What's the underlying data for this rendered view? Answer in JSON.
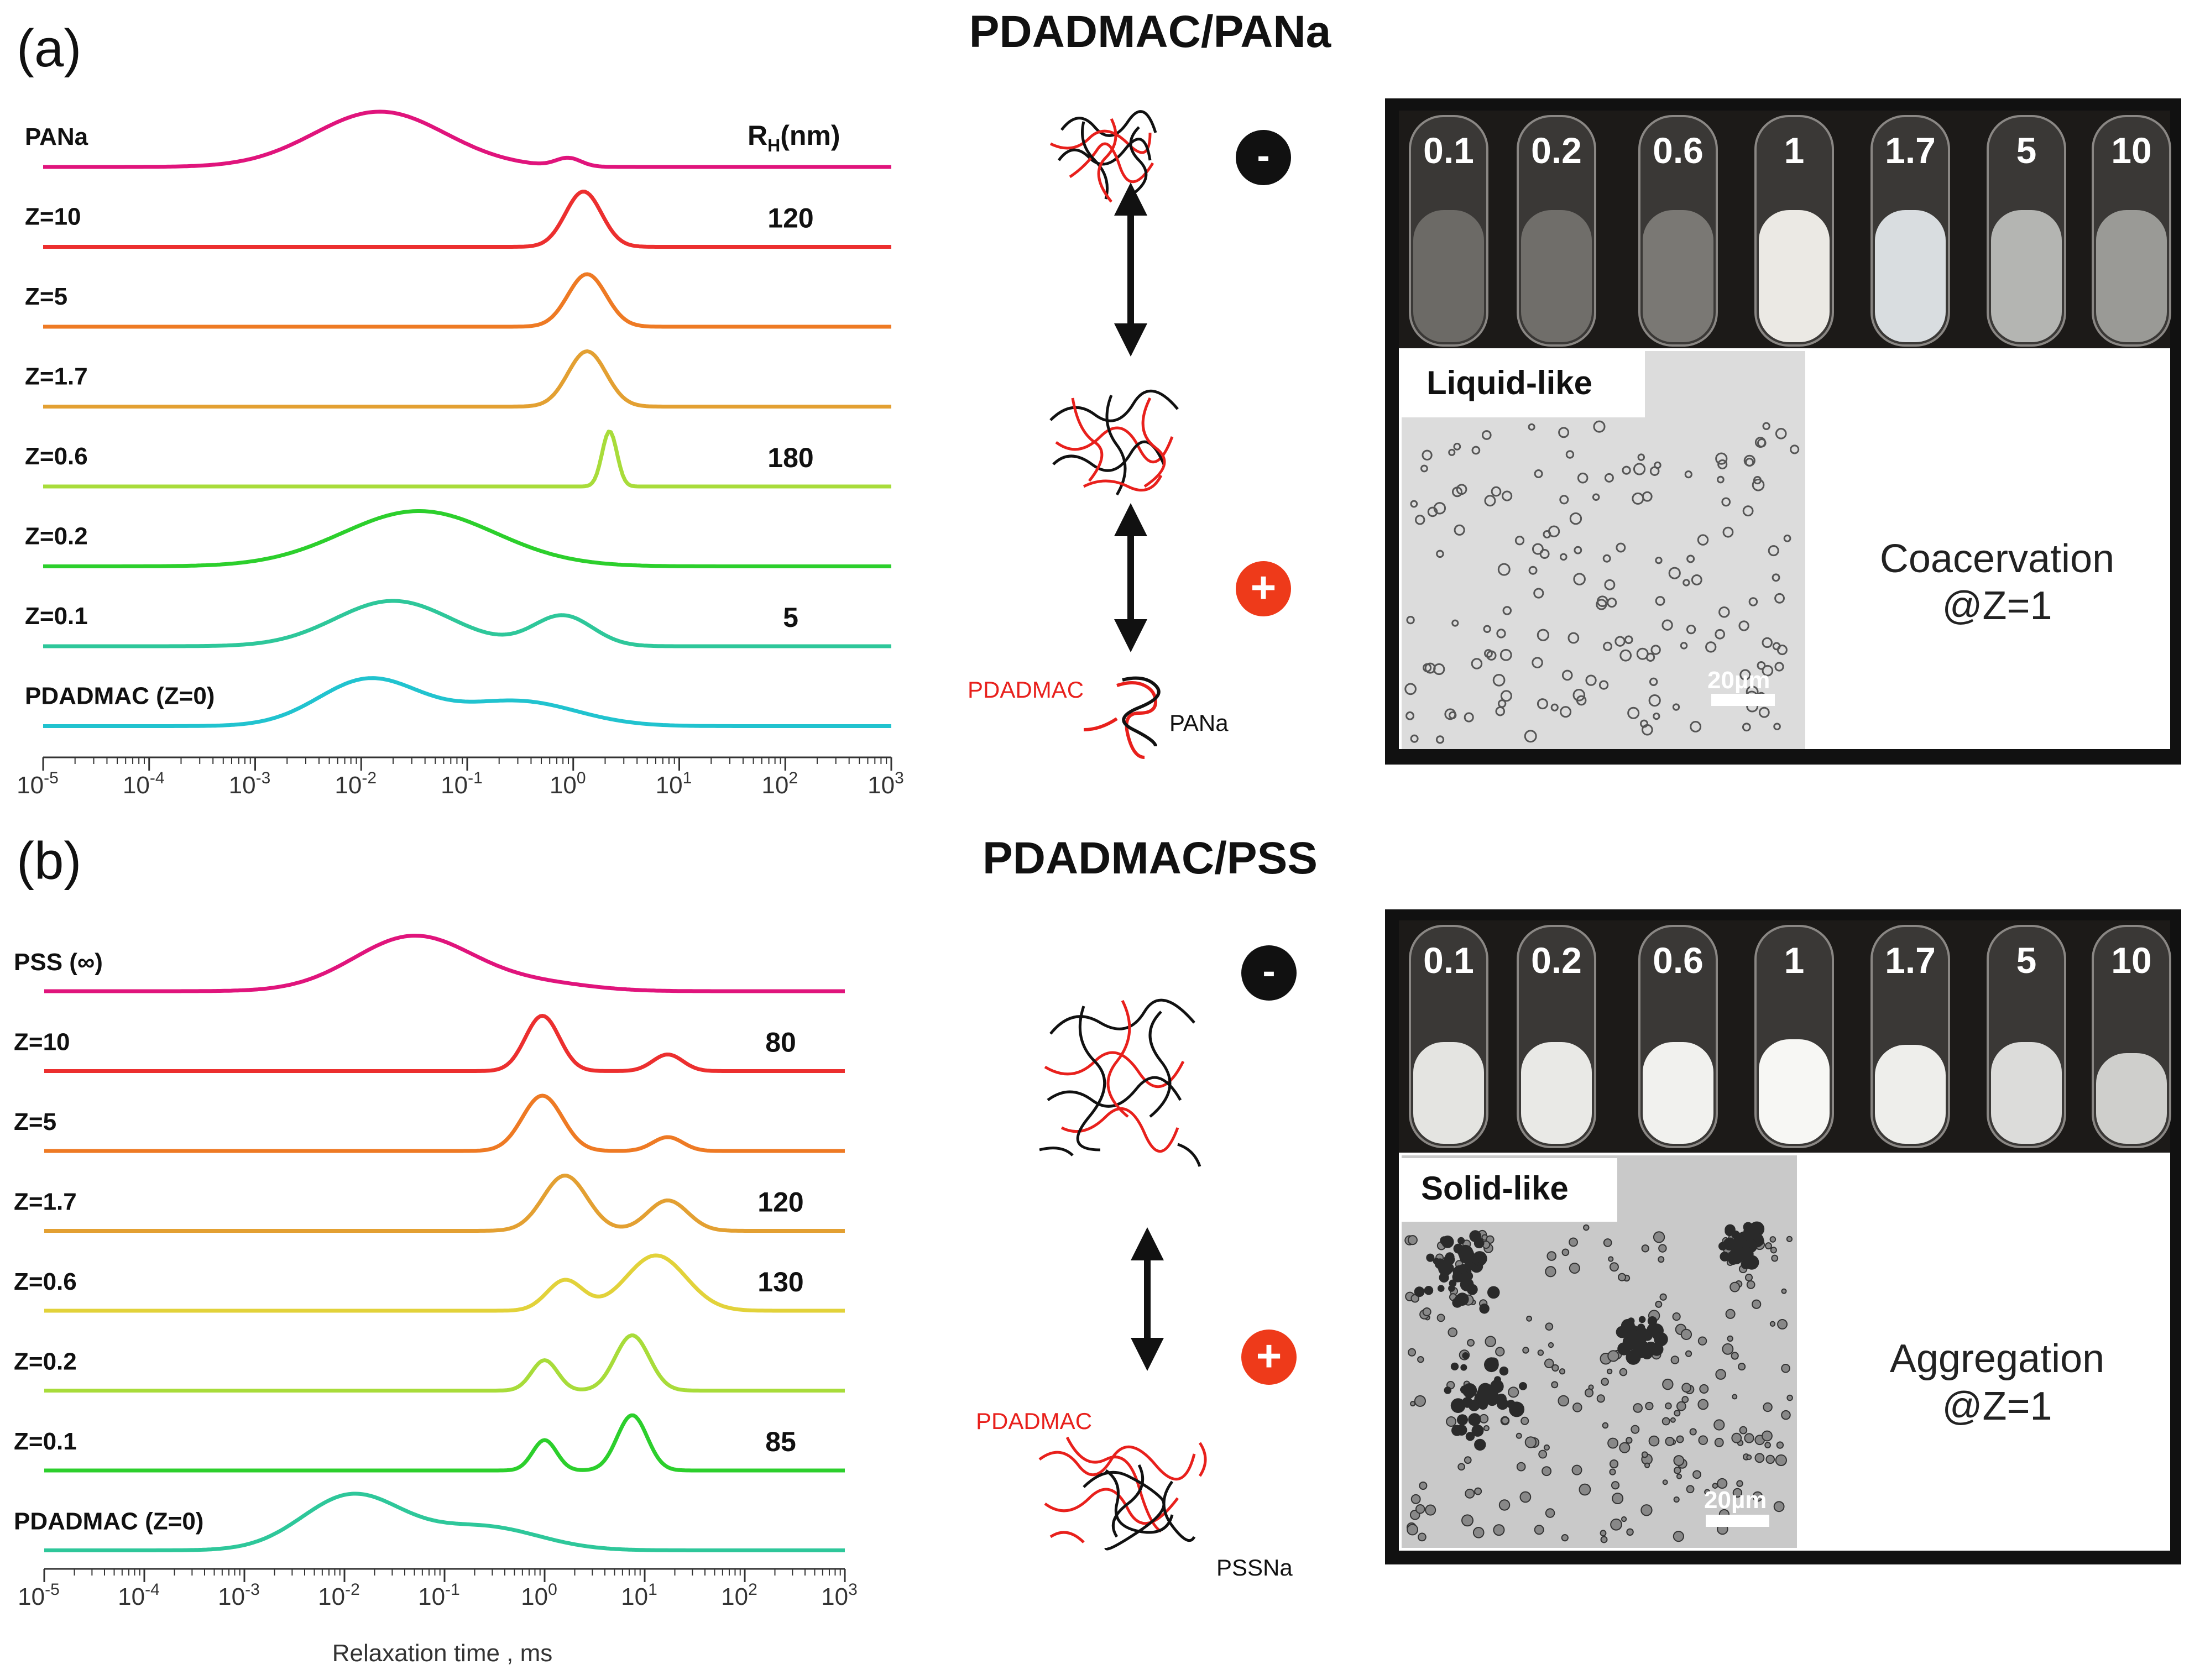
{
  "figure": {
    "panel_a_label": "(a)",
    "panel_b_label": "(b)",
    "title_a": "PDADMAC/PANa",
    "title_b": "PDADMAC/PSS",
    "x_axis_label": "Relaxation time , ms",
    "rh_header": "R",
    "rh_header_sub": "H",
    "rh_header_unit": "(nm)"
  },
  "chart_data": [
    {
      "type": "line",
      "name": "panel-a",
      "title": "PDADMAC/PANa",
      "xlabel": "Relaxation time , ms",
      "xscale": "log",
      "xlim": [
        1e-05,
        1000
      ],
      "x_tick_labels": [
        {
          "base": "10",
          "exp": "-5"
        },
        {
          "base": "10",
          "exp": "-4"
        },
        {
          "base": "10",
          "exp": "-3"
        },
        {
          "base": "10",
          "exp": "-2"
        },
        {
          "base": "10",
          "exp": "-1"
        },
        {
          "base": "10",
          "exp": "0"
        },
        {
          "base": "10",
          "exp": "1"
        },
        {
          "base": "10",
          "exp": "2"
        },
        {
          "base": "10",
          "exp": "3"
        }
      ],
      "series": [
        {
          "name": "PANa",
          "color": "#e0147c",
          "rh": "",
          "peaks": [
            {
              "center": 0.015,
              "width": 0.62,
              "amp": 1.0
            },
            {
              "center": 0.9,
              "width": 0.12,
              "amp": 0.15
            }
          ]
        },
        {
          "name": "Z=10",
          "color": "#ec2f2f",
          "rh": "120",
          "peaks": [
            {
              "center": 1.25,
              "width": 0.17,
              "amp": 1.0
            }
          ]
        },
        {
          "name": "Z=5",
          "color": "#ee7a24",
          "rh": "",
          "peaks": [
            {
              "center": 1.35,
              "width": 0.18,
              "amp": 0.95
            }
          ]
        },
        {
          "name": "Z=1.7",
          "color": "#e3a032",
          "rh": "",
          "peaks": [
            {
              "center": 1.35,
              "width": 0.18,
              "amp": 1.0
            }
          ]
        },
        {
          "name": "Z=0.6",
          "color": "#a8dc3a",
          "rh": "180",
          "peaks": [
            {
              "center": 2.2,
              "width": 0.07,
              "amp": 1.0
            }
          ]
        },
        {
          "name": "Z=0.2",
          "color": "#2ccf2c",
          "rh": "",
          "peaks": [
            {
              "center": 0.035,
              "width": 0.72,
              "amp": 1.0
            }
          ]
        },
        {
          "name": "Z=0.1",
          "color": "#2ec79a",
          "rh": "5",
          "peaks": [
            {
              "center": 0.02,
              "width": 0.55,
              "amp": 0.82
            },
            {
              "center": 0.8,
              "width": 0.28,
              "amp": 0.55
            }
          ]
        },
        {
          "name": "PDADMAC (Z=0)",
          "color": "#21c3cf",
          "rh": "",
          "peaks": [
            {
              "center": 0.012,
              "width": 0.48,
              "amp": 0.85
            },
            {
              "center": 0.3,
              "width": 0.55,
              "amp": 0.45
            }
          ]
        }
      ]
    },
    {
      "type": "line",
      "name": "panel-b",
      "title": "PDADMAC/PSS",
      "xlabel": "Relaxation time , ms",
      "xscale": "log",
      "xlim": [
        1e-05,
        1000
      ],
      "x_tick_labels": [
        {
          "base": "10",
          "exp": "-5"
        },
        {
          "base": "10",
          "exp": "-4"
        },
        {
          "base": "10",
          "exp": "-3"
        },
        {
          "base": "10",
          "exp": "-2"
        },
        {
          "base": "10",
          "exp": "-1"
        },
        {
          "base": "10",
          "exp": "0"
        },
        {
          "base": "10",
          "exp": "1"
        },
        {
          "base": "10",
          "exp": "2"
        },
        {
          "base": "10",
          "exp": "3"
        }
      ],
      "series": [
        {
          "name": "PSS (∞)",
          "color": "#e0147c",
          "rh": "",
          "peaks": [
            {
              "center": 0.05,
              "width": 0.6,
              "amp": 1.0
            },
            {
              "center": 1.0,
              "width": 0.5,
              "amp": 0.12
            }
          ]
        },
        {
          "name": "Z=10",
          "color": "#ec2f2f",
          "rh": "80",
          "peaks": [
            {
              "center": 0.95,
              "width": 0.17,
              "amp": 1.0
            },
            {
              "center": 17,
              "width": 0.15,
              "amp": 0.3
            }
          ]
        },
        {
          "name": "Z=5",
          "color": "#ee7a24",
          "rh": "",
          "peaks": [
            {
              "center": 0.95,
              "width": 0.2,
              "amp": 1.0
            },
            {
              "center": 17,
              "width": 0.15,
              "amp": 0.25
            }
          ]
        },
        {
          "name": "Z=1.7",
          "color": "#e3a032",
          "rh": "120",
          "peaks": [
            {
              "center": 1.6,
              "width": 0.22,
              "amp": 1.0
            },
            {
              "center": 17,
              "width": 0.2,
              "amp": 0.55
            }
          ]
        },
        {
          "name": "Z=0.6",
          "color": "#e2d23a",
          "rh": "130",
          "peaks": [
            {
              "center": 1.6,
              "width": 0.18,
              "amp": 0.55
            },
            {
              "center": 13,
              "width": 0.3,
              "amp": 1.0
            }
          ]
        },
        {
          "name": "Z=0.2",
          "color": "#a8dc3a",
          "rh": "",
          "peaks": [
            {
              "center": 1.0,
              "width": 0.13,
              "amp": 0.55
            },
            {
              "center": 7.5,
              "width": 0.17,
              "amp": 1.0
            }
          ]
        },
        {
          "name": "Z=0.1",
          "color": "#2ccf2c",
          "rh": "85",
          "peaks": [
            {
              "center": 1.0,
              "width": 0.12,
              "amp": 0.55
            },
            {
              "center": 7.5,
              "width": 0.15,
              "amp": 1.0
            }
          ]
        },
        {
          "name": "PDADMAC (Z=0)",
          "color": "#2ec79a",
          "rh": "",
          "peaks": [
            {
              "center": 0.012,
              "width": 0.5,
              "amp": 1.0
            },
            {
              "center": 0.25,
              "width": 0.55,
              "amp": 0.42
            }
          ]
        }
      ]
    }
  ],
  "schematics": {
    "a_polyanion_label": "PANa",
    "a_polycation_label": "PDADMAC",
    "b_polyanion_label": "PSSNa",
    "b_polycation_label": "PDADMAC",
    "minus_sign": "-",
    "plus_sign": "+"
  },
  "photos": {
    "tube_labels_a": [
      "0.1",
      "0.2",
      "0.6",
      "1",
      "1.7",
      "5",
      "10"
    ],
    "tube_labels_b": [
      "0.1",
      "0.2",
      "0.6",
      "1",
      "1.7",
      "5",
      "10"
    ],
    "micro_label_a": "Liquid-like",
    "micro_label_b": "Solid-like",
    "scale_bar_label": "20µm",
    "result_a_line1": "Coacervation",
    "result_a_line2": "@Z=1",
    "result_b_line1": "Aggregation",
    "result_b_line2": "@Z=1"
  },
  "colors": {
    "red_chain": "#e8201c",
    "black_chain": "#111111",
    "photo_frame": "#111111"
  }
}
